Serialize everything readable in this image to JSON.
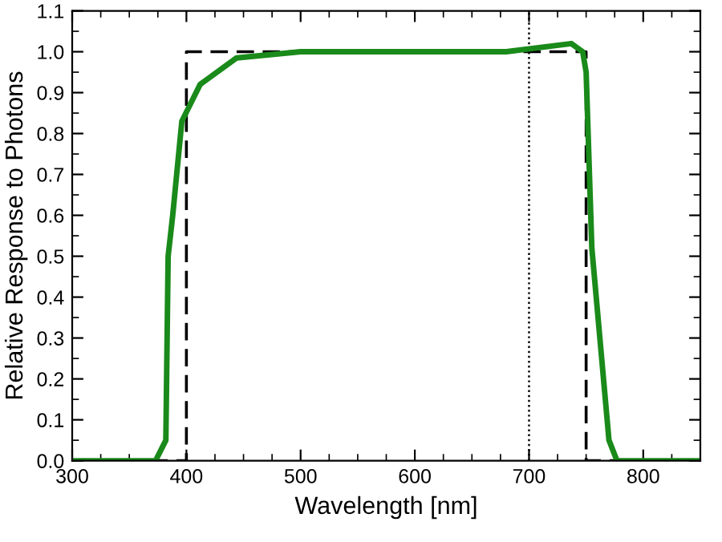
{
  "chart_data": {
    "type": "line",
    "xlabel": "Wavelength [nm]",
    "ylabel": "Relative Response to Photons",
    "xlim": [
      300,
      850
    ],
    "xticks": [
      300,
      400,
      500,
      600,
      700,
      800
    ],
    "ylim": [
      0,
      1.1
    ],
    "yticks": [
      {
        "value": 0,
        "label": "0.0"
      },
      {
        "value": 0.1,
        "label": "0.1"
      },
      {
        "value": 0.2,
        "label": "0.2"
      },
      {
        "value": 0.3,
        "label": "0.3"
      },
      {
        "value": 0.4,
        "label": "0.4"
      },
      {
        "value": 0.5,
        "label": "0.5"
      },
      {
        "value": 0.6,
        "label": "0.6"
      },
      {
        "value": 0.7,
        "label": "0.7"
      },
      {
        "value": 0.8,
        "label": "0.8"
      },
      {
        "value": 0.9,
        "label": "0.9"
      },
      {
        "value": 1.0,
        "label": "1.0"
      },
      {
        "value": 1.1,
        "label": "1.1"
      }
    ],
    "grid": false,
    "marker": "none",
    "ref_lines": [
      {
        "axis": "x",
        "value": 700,
        "color": "#000000",
        "line_style": "dotted"
      }
    ],
    "series": [
      {
        "color": "#000000",
        "line_style": "dashed",
        "x": [
          300,
          400,
          400,
          750,
          750,
          850
        ],
        "values": [
          0,
          0,
          1,
          1,
          0,
          0
        ]
      },
      {
        "color": "#1a8a1a",
        "line_style": "solid",
        "x": [
          300,
          373,
          382,
          384,
          388,
          396,
          412,
          444,
          500,
          680,
          737,
          747,
          750,
          755,
          770,
          777,
          850
        ],
        "values": [
          0,
          0,
          0.05,
          0.5,
          0.6,
          0.83,
          0.92,
          0.985,
          1.0,
          1.0,
          1.02,
          1.0,
          0.95,
          0.52,
          0.05,
          0,
          0
        ]
      }
    ]
  }
}
